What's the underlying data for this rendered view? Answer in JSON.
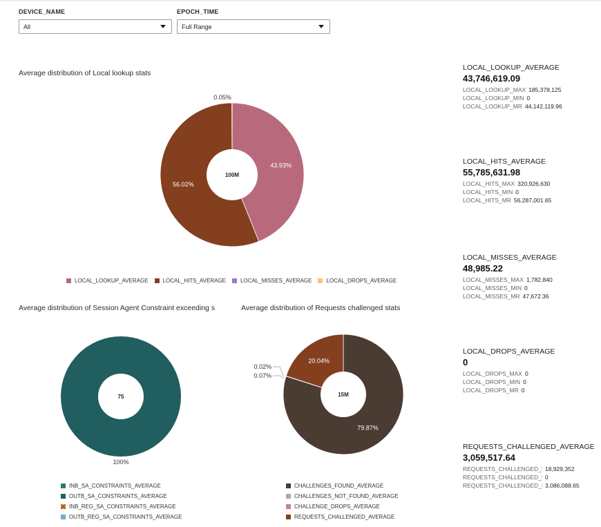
{
  "filters": {
    "device_name": {
      "label": "DEVICE_NAME",
      "value": "All"
    },
    "epoch_time": {
      "label": "EPOCH_TIME",
      "value": "Full Range"
    }
  },
  "charts": {
    "local_lookup": {
      "title": "Average distribution of Local lookup stats",
      "center": "100M"
    },
    "session_agent": {
      "title": "Average distribution of Session Agent Constraint exceeding s",
      "center": "75"
    },
    "requests_challenged": {
      "title": "Average distribution of Requests challenged stats",
      "center": "15M"
    }
  },
  "chart_data": [
    {
      "type": "pie",
      "title": "Average distribution of Local lookup stats",
      "center_label": "100M",
      "legend_position": "bottom",
      "slices": [
        {
          "name": "LOCAL_LOOKUP_AVERAGE",
          "value": 43.93,
          "label": "43.93%",
          "color": "#b86a7c",
          "label_color": "#ffffff"
        },
        {
          "name": "LOCAL_HITS_AVERAGE",
          "value": 56.02,
          "label": "56.02%",
          "color": "#843f1f",
          "label_color": "#ffffff"
        },
        {
          "name": "LOCAL_MISSES_AVERAGE",
          "value": 0.05,
          "label": "0.05%",
          "color": "#9b78c8",
          "label_color": "#333333"
        },
        {
          "name": "LOCAL_DROPS_AVERAGE",
          "value": 0,
          "label": "",
          "color": "#f5c86e",
          "label_color": "#333333"
        }
      ]
    },
    {
      "type": "pie",
      "title": "Average distribution of Session Agent Constraint exceeding s",
      "center_label": "75",
      "legend_position": "bottom",
      "slices": [
        {
          "name": "INB_SA_CONSTRAINTS_AVERAGE",
          "value": 0,
          "label": "",
          "color": "#2e7d5b",
          "label_color": "#333333"
        },
        {
          "name": "OUTB_SA_CONSTRAINTS_AVERAGE",
          "value": 100,
          "label": "100%",
          "color": "#215e5f",
          "label_color": "#333333"
        },
        {
          "name": "INB_REG_SA_CONSTRAINTS_AVERAGE",
          "value": 0,
          "label": "",
          "color": "#e0912f",
          "label_color": "#333333"
        },
        {
          "name": "OUTB_REG_SA_CONSTRAINTS_AVERAGE",
          "value": 0,
          "label": "",
          "color": "#6aaed0",
          "label_color": "#333333"
        }
      ]
    },
    {
      "type": "pie",
      "title": "Average distribution of Requests challenged stats",
      "center_label": "15M",
      "legend_position": "bottom",
      "slices": [
        {
          "name": "CHALLENGES_FOUND_AVERAGE",
          "value": 79.87,
          "label": "79.87%",
          "color": "#4a3b33",
          "label_color": "#ffffff"
        },
        {
          "name": "CHALLENGES_NOT_FOUND_AVERAGE",
          "value": 0.07,
          "label": "0.07%",
          "color": "#a9a9a9",
          "label_color": "#333333"
        },
        {
          "name": "CHALLENGE_DROPS_AVERAGE",
          "value": 0.02,
          "label": "0.02%",
          "color": "#c9808e",
          "label_color": "#333333"
        },
        {
          "name": "REQUESTS_CHALLENGED_AVERAGE",
          "value": 20.04,
          "label": "20.04%",
          "color": "#843f1f",
          "label_color": "#ffffff"
        }
      ]
    }
  ],
  "metrics": [
    {
      "title": "LOCAL_LOOKUP_AVERAGE",
      "value": "43,746,619.09",
      "subs": [
        {
          "k": "LOCAL_LOOKUP_MAX",
          "v": "185,378,125"
        },
        {
          "k": "LOCAL_LOOKUP_MIN",
          "v": "0"
        },
        {
          "k": "LOCAL_LOOKUP_MR",
          "v": "44,142,119.96"
        }
      ]
    },
    {
      "title": "LOCAL_HITS_AVERAGE",
      "value": "55,785,631.98",
      "subs": [
        {
          "k": "LOCAL_HITS_MAX",
          "v": "320,926,630"
        },
        {
          "k": "LOCAL_HITS_MIN",
          "v": "0"
        },
        {
          "k": "LOCAL_HITS_MR",
          "v": "56,287,001.65"
        }
      ]
    },
    {
      "title": "LOCAL_MISSES_AVERAGE",
      "value": "48,985.22",
      "subs": [
        {
          "k": "LOCAL_MISSES_MAX",
          "v": "1,782,840"
        },
        {
          "k": "LOCAL_MISSES_MIN",
          "v": "0"
        },
        {
          "k": "LOCAL_MISSES_MR",
          "v": "47,672.36"
        }
      ]
    },
    {
      "title": "LOCAL_DROPS_AVERAGE",
      "value": "0",
      "subs": [
        {
          "k": "LOCAL_DROPS_MAX",
          "v": "0"
        },
        {
          "k": "LOCAL_DROPS_MIN",
          "v": "0"
        },
        {
          "k": "LOCAL_DROPS_MR",
          "v": "0"
        }
      ]
    },
    {
      "title": "REQUESTS_CHALLENGED_AVERAGE",
      "value": "3,059,517.64",
      "subs": [
        {
          "k": "REQUESTS_CHALLENGED_!",
          "v": "18,929,352"
        },
        {
          "k": "REQUESTS_CHALLENGED_!",
          "v": "0"
        },
        {
          "k": "REQUESTS_CHALLENGED_!",
          "v": "3,086,088.65"
        }
      ]
    }
  ]
}
